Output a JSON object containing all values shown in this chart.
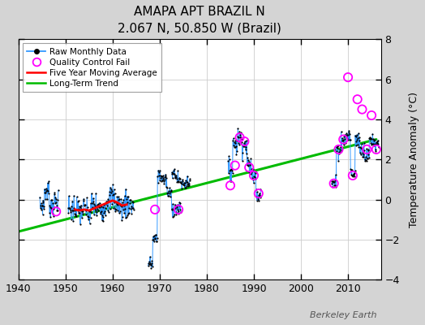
{
  "title": "AMAPA APT BRAZIL N",
  "subtitle": "2.067 N, 50.850 W (Brazil)",
  "ylabel": "Temperature Anomaly (°C)",
  "xlim": [
    1940,
    2017
  ],
  "ylim": [
    -4,
    8
  ],
  "yticks": [
    -4,
    -2,
    0,
    2,
    4,
    6,
    8
  ],
  "xticks": [
    1940,
    1950,
    1960,
    1970,
    1980,
    1990,
    2000,
    2010
  ],
  "fig_bg": "#d4d4d4",
  "plot_bg": "#ffffff",
  "watermark": "Berkeley Earth",
  "segments": [
    {
      "years": [
        1945,
        1946,
        1947,
        1948
      ],
      "values": [
        -0.3,
        0.4,
        -0.3,
        -0.1
      ],
      "spread": 0.25
    },
    {
      "years": [
        1951,
        1952,
        1953,
        1954,
        1955,
        1956,
        1957,
        1958,
        1959,
        1960,
        1961,
        1962,
        1963,
        1964
      ],
      "values": [
        -0.5,
        -0.4,
        -0.6,
        -0.5,
        -0.7,
        -0.3,
        -0.5,
        -0.4,
        0.0,
        0.1,
        -0.2,
        -0.4,
        -0.2,
        -0.3
      ],
      "spread": 0.35
    },
    {
      "years": [
        1968,
        1969,
        1970,
        1971,
        1972,
        1973,
        1974
      ],
      "values": [
        -3.2,
        -2.0,
        1.2,
        1.0,
        0.3,
        -0.4,
        -0.5
      ],
      "spread": 0.2
    },
    {
      "years": [
        1973,
        1974,
        1975,
        1976
      ],
      "values": [
        1.3,
        1.0,
        0.8,
        0.9
      ],
      "spread": 0.15
    },
    {
      "years": [
        1985,
        1986,
        1987,
        1988,
        1989,
        1990,
        1991
      ],
      "values": [
        1.5,
        2.8,
        3.1,
        2.7,
        1.7,
        1.2,
        0.3
      ],
      "spread": 0.25
    },
    {
      "years": [
        2007,
        2008,
        2009,
        2010,
        2011,
        2012,
        2013,
        2014,
        2015,
        2016
      ],
      "values": [
        0.8,
        2.5,
        3.0,
        3.2,
        1.3,
        3.0,
        2.5,
        2.2,
        3.0,
        2.8
      ],
      "spread": 0.2
    }
  ],
  "qc_fail_points": [
    [
      1948,
      -0.6
    ],
    [
      1969,
      -0.5
    ],
    [
      1974,
      -0.5
    ],
    [
      1985,
      0.7
    ],
    [
      1986,
      1.7
    ],
    [
      1987,
      3.1
    ],
    [
      1988,
      2.9
    ],
    [
      1989,
      1.6
    ],
    [
      1990,
      1.2
    ],
    [
      1991,
      0.3
    ],
    [
      2007,
      0.8
    ],
    [
      2008,
      2.5
    ],
    [
      2009,
      3.0
    ],
    [
      2010,
      6.1
    ],
    [
      2011,
      1.2
    ],
    [
      2012,
      5.0
    ],
    [
      2013,
      4.5
    ],
    [
      2014,
      2.5
    ],
    [
      2015,
      4.2
    ],
    [
      2016,
      2.5
    ]
  ],
  "moving_avg_years": [
    1952,
    1953,
    1954,
    1955,
    1956,
    1957,
    1958,
    1959,
    1960,
    1961,
    1962,
    1963
  ],
  "moving_avg_vals": [
    -0.5,
    -0.55,
    -0.5,
    -0.55,
    -0.45,
    -0.35,
    -0.25,
    -0.15,
    -0.05,
    -0.15,
    -0.3,
    -0.25
  ],
  "trend_x": [
    1940,
    2016
  ],
  "trend_y": [
    -1.6,
    3.0
  ]
}
